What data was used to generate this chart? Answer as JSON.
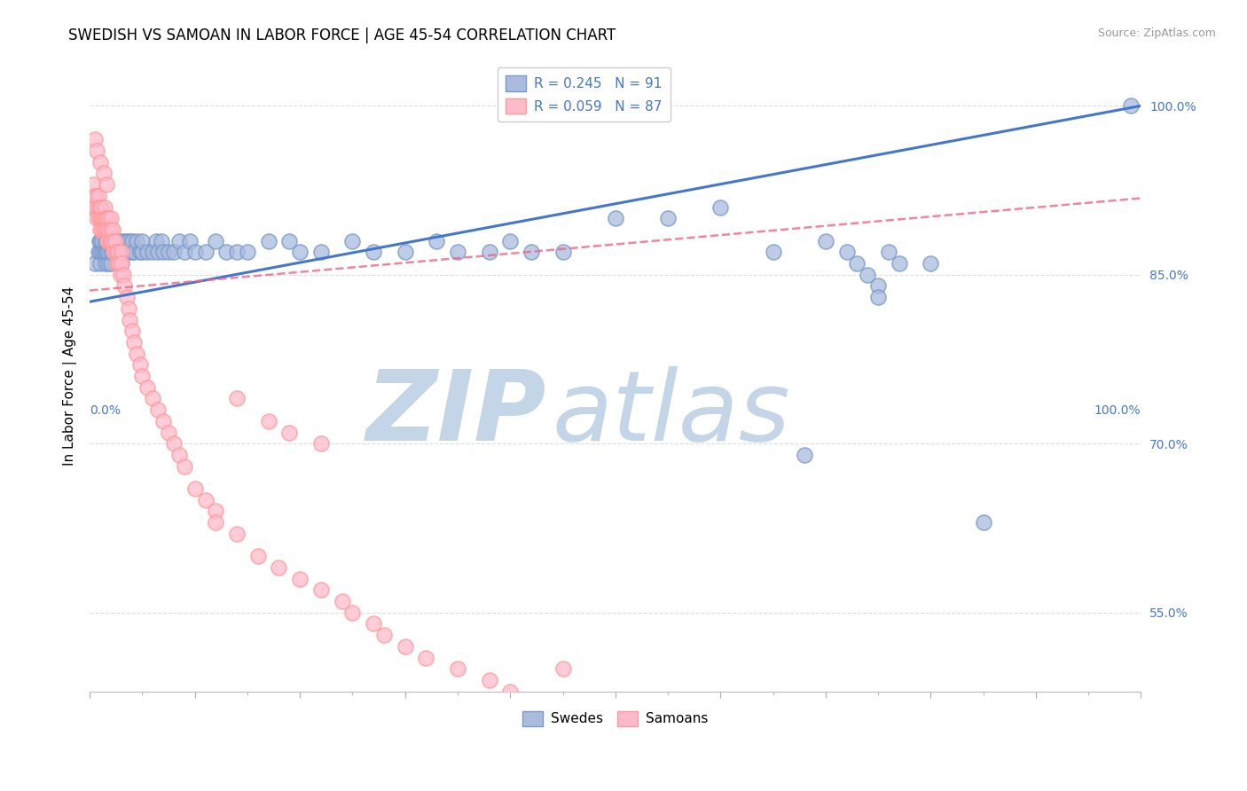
{
  "title": "Swedish vs Samoan In Labor Force | Age 45-54 Correlation Chart",
  "title_display": "SWEDISH VS SAMOAN IN LABOR FORCE | AGE 45-54 CORRELATION CHART",
  "source_text": "Source: ZipAtlas.com",
  "ylabel": "In Labor Force | Age 45-54",
  "xlim": [
    0.0,
    1.0
  ],
  "ylim": [
    0.48,
    1.04
  ],
  "yticks": [
    0.55,
    0.7,
    0.85,
    1.0
  ],
  "ytick_labels": [
    "55.0%",
    "70.0%",
    "85.0%",
    "100.0%"
  ],
  "xtick_left_label": "0.0%",
  "xtick_right_label": "100.0%",
  "grid_color": "#dddddd",
  "background_color": "#ffffff",
  "blue_scatter_color": "#aabbdd",
  "blue_edge_color": "#7799cc",
  "pink_scatter_color": "#ffbbcc",
  "pink_edge_color": "#ff9999",
  "line_blue_color": "#4477cc",
  "line_pink_color": "#ee6688",
  "legend_label1": "R = 0.245   N = 91",
  "legend_label2": "R = 0.059   N = 87",
  "bottom_label1": "Swedes",
  "bottom_label2": "Samoans",
  "legend_box_blue": "#aabbdd",
  "legend_box_pink": "#ffbbcc",
  "legend_text_color": "#4477cc",
  "blue_line_x0": 0.0,
  "blue_line_x1": 1.0,
  "blue_line_y0": 0.826,
  "blue_line_y1": 1.0,
  "pink_line_x0": 0.0,
  "pink_line_x1": 1.0,
  "pink_line_y0": 0.836,
  "pink_line_y1": 0.918,
  "watermark_zip": "ZIP",
  "watermark_atlas": "atlas",
  "watermark_color": "#c5d5e8",
  "title_fontsize": 12,
  "source_fontsize": 9,
  "ylabel_fontsize": 11,
  "tick_fontsize": 10,
  "legend_fontsize": 11,
  "blue_x": [
    0.005,
    0.008,
    0.009,
    0.01,
    0.01,
    0.01,
    0.012,
    0.012,
    0.013,
    0.015,
    0.015,
    0.015,
    0.016,
    0.017,
    0.018,
    0.018,
    0.019,
    0.02,
    0.02,
    0.02,
    0.022,
    0.022,
    0.023,
    0.025,
    0.025,
    0.026,
    0.027,
    0.028,
    0.028,
    0.03,
    0.03,
    0.03,
    0.032,
    0.033,
    0.035,
    0.035,
    0.037,
    0.038,
    0.04,
    0.04,
    0.042,
    0.045,
    0.048,
    0.05,
    0.05,
    0.055,
    0.06,
    0.063,
    0.065,
    0.068,
    0.07,
    0.075,
    0.08,
    0.085,
    0.09,
    0.095,
    0.1,
    0.11,
    0.12,
    0.13,
    0.14,
    0.15,
    0.17,
    0.19,
    0.2,
    0.22,
    0.25,
    0.27,
    0.3,
    0.33,
    0.35,
    0.38,
    0.4,
    0.42,
    0.45,
    0.5,
    0.55,
    0.6,
    0.65,
    0.68,
    0.7,
    0.72,
    0.73,
    0.74,
    0.75,
    0.75,
    0.76,
    0.77,
    0.8,
    0.85,
    0.99
  ],
  "blue_y": [
    0.86,
    0.87,
    0.88,
    0.86,
    0.87,
    0.88,
    0.87,
    0.88,
    0.87,
    0.86,
    0.87,
    0.88,
    0.87,
    0.88,
    0.86,
    0.87,
    0.88,
    0.86,
    0.87,
    0.88,
    0.87,
    0.88,
    0.87,
    0.87,
    0.88,
    0.87,
    0.86,
    0.87,
    0.88,
    0.86,
    0.87,
    0.88,
    0.87,
    0.88,
    0.87,
    0.88,
    0.87,
    0.88,
    0.87,
    0.88,
    0.87,
    0.88,
    0.87,
    0.87,
    0.88,
    0.87,
    0.87,
    0.88,
    0.87,
    0.88,
    0.87,
    0.87,
    0.87,
    0.88,
    0.87,
    0.88,
    0.87,
    0.87,
    0.88,
    0.87,
    0.87,
    0.87,
    0.88,
    0.88,
    0.87,
    0.87,
    0.88,
    0.87,
    0.87,
    0.88,
    0.87,
    0.87,
    0.88,
    0.87,
    0.87,
    0.9,
    0.9,
    0.91,
    0.87,
    0.69,
    0.88,
    0.87,
    0.86,
    0.85,
    0.84,
    0.83,
    0.87,
    0.86,
    0.86,
    0.63,
    1.0
  ],
  "pink_x": [
    0.002,
    0.003,
    0.004,
    0.005,
    0.006,
    0.007,
    0.007,
    0.008,
    0.009,
    0.009,
    0.01,
    0.01,
    0.01,
    0.011,
    0.012,
    0.012,
    0.013,
    0.013,
    0.014,
    0.015,
    0.015,
    0.016,
    0.016,
    0.017,
    0.018,
    0.018,
    0.019,
    0.02,
    0.02,
    0.02,
    0.022,
    0.022,
    0.023,
    0.024,
    0.025,
    0.026,
    0.027,
    0.028,
    0.029,
    0.03,
    0.03,
    0.032,
    0.033,
    0.035,
    0.037,
    0.038,
    0.04,
    0.042,
    0.045,
    0.048,
    0.05,
    0.055,
    0.06,
    0.065,
    0.07,
    0.075,
    0.08,
    0.085,
    0.09,
    0.1,
    0.11,
    0.12,
    0.14,
    0.16,
    0.18,
    0.2,
    0.22,
    0.24,
    0.25,
    0.27,
    0.28,
    0.3,
    0.32,
    0.35,
    0.38,
    0.4,
    0.14,
    0.17,
    0.19,
    0.22,
    0.005,
    0.007,
    0.01,
    0.013,
    0.016,
    0.45,
    0.12
  ],
  "pink_y": [
    0.91,
    0.93,
    0.92,
    0.91,
    0.92,
    0.91,
    0.9,
    0.92,
    0.91,
    0.9,
    0.91,
    0.9,
    0.89,
    0.91,
    0.9,
    0.89,
    0.9,
    0.89,
    0.91,
    0.9,
    0.89,
    0.9,
    0.89,
    0.88,
    0.9,
    0.89,
    0.88,
    0.9,
    0.89,
    0.88,
    0.89,
    0.88,
    0.87,
    0.88,
    0.87,
    0.86,
    0.87,
    0.86,
    0.85,
    0.87,
    0.86,
    0.85,
    0.84,
    0.83,
    0.82,
    0.81,
    0.8,
    0.79,
    0.78,
    0.77,
    0.76,
    0.75,
    0.74,
    0.73,
    0.72,
    0.71,
    0.7,
    0.69,
    0.68,
    0.66,
    0.65,
    0.64,
    0.62,
    0.6,
    0.59,
    0.58,
    0.57,
    0.56,
    0.55,
    0.54,
    0.53,
    0.52,
    0.51,
    0.5,
    0.49,
    0.48,
    0.74,
    0.72,
    0.71,
    0.7,
    0.97,
    0.96,
    0.95,
    0.94,
    0.93,
    0.5,
    0.63
  ]
}
